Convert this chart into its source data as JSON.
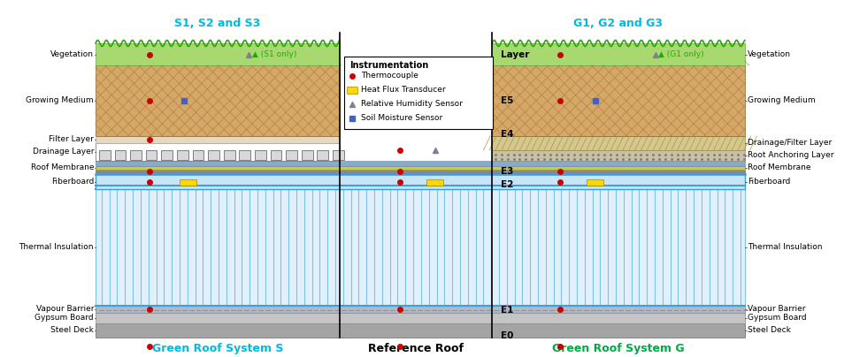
{
  "title_left": "S1, S2 and S3",
  "title_right": "G1, G2 and G3",
  "label_bottom_left": "Green Roof System S",
  "label_bottom_center": "Reference Roof",
  "label_bottom_right": "Green Roof System G",
  "layer_labels": [
    "E0",
    "E1",
    "E2",
    "E3",
    "E4",
    "E5"
  ],
  "colors": {
    "vegetation_green": "#A8D870",
    "growing_medium_fill": "#D4A868",
    "growing_medium_hatch": "#B87830",
    "filter_layer": "#E8D8C0",
    "drainage_bg": "#FFFFFF",
    "drainage_cup": "#D0D0D0",
    "root_anchor_fill": "#C8C0A8",
    "drain_filter_fill": "#D4C890",
    "roof_mem_purple": "#9080A0",
    "roof_mem_yellow": "#C8CC44",
    "roof_mem_blue": "#88AACC",
    "fiberboard_fill": "#C8E4F8",
    "thermal_fill": "#E0F0FC",
    "thermal_line": "#80C0E0",
    "vapour_fill": "#B0B8C8",
    "gypsum_fill": "#C4C4C4",
    "steel_fill": "#A4A4A4",
    "thermocouple": "#CC0000",
    "heat_flux": "#FFD700",
    "humidity": "#808090",
    "moisture": "#4060CC",
    "cyan_title": "#00BBDD",
    "green_title": "#00AA44",
    "wavy_line": "#22AA00",
    "wavy_fill": "#90D060"
  }
}
